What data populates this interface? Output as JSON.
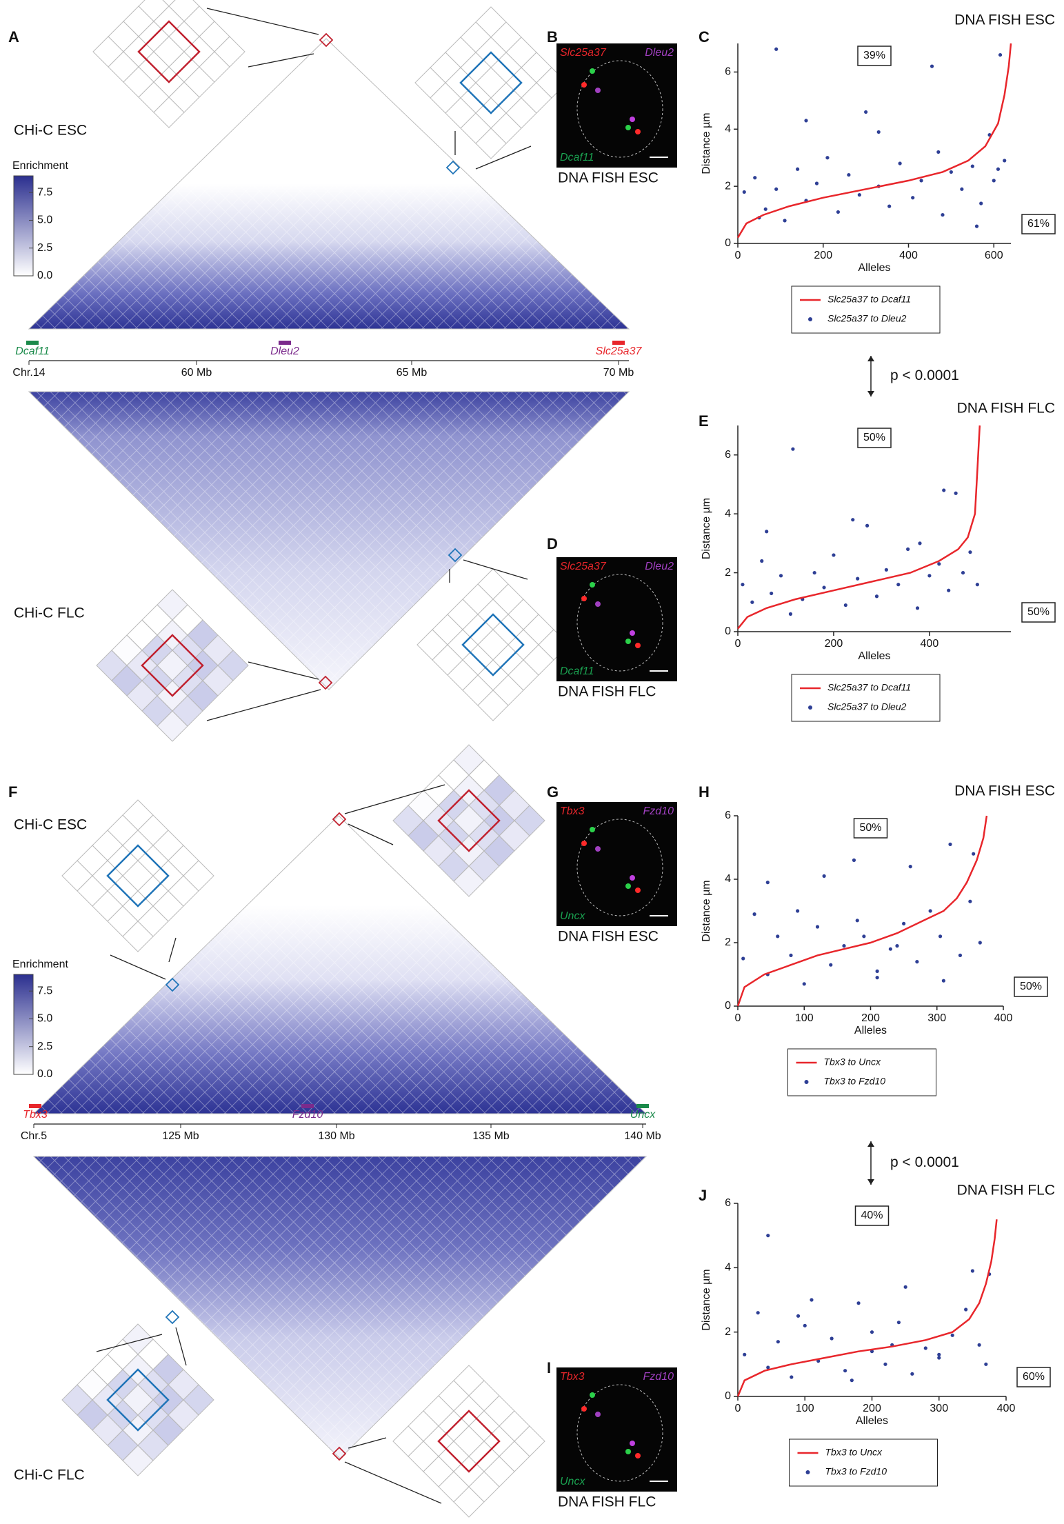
{
  "figure": {
    "letters": [
      "A",
      "B",
      "C",
      "D",
      "E",
      "F",
      "G",
      "H",
      "I",
      "J"
    ],
    "top": {
      "esc_label": "CHi-C ESC",
      "flc_label": "CHi-C FLC",
      "colorbar": {
        "title": "Enrichment",
        "lim": [
          0,
          9
        ],
        "colors": [
          "#ffffff",
          "#2b2f8f"
        ],
        "ticks": [
          {
            "value": 0,
            "label": "0.0"
          },
          {
            "value": 2.5,
            "label": "2.5"
          },
          {
            "value": 5,
            "label": "5.0"
          },
          {
            "value": 7.5,
            "label": "7.5"
          }
        ]
      },
      "genes": [
        {
          "name": "Dcaf11",
          "color": "#1a8a4a"
        },
        {
          "name": "Dleu2",
          "color": "#7b2a8c"
        },
        {
          "name": "Slc25a37",
          "color": "#e8262b"
        }
      ],
      "axis_labels": [
        "Chr.14",
        "60 Mb",
        "65 Mb",
        "70 Mb"
      ],
      "fish_esc": {
        "caption": "DNA FISH ESC",
        "labels": [
          {
            "text": "Slc25a37",
            "color": "#e8262b"
          },
          {
            "text": "Dleu2",
            "color": "#a040c0"
          },
          {
            "text": "Dcaf11",
            "color": "#1aa050"
          }
        ]
      },
      "fish_flc": {
        "caption": "DNA FISH FLC",
        "labels": [
          {
            "text": "Slc25a37",
            "color": "#e8262b"
          },
          {
            "text": "Dleu2",
            "color": "#a040c0"
          },
          {
            "text": "Dcaf11",
            "color": "#1aa050"
          }
        ]
      },
      "pvalue": "p < 0.0001"
    },
    "bottom": {
      "esc_label": "CHi-C ESC",
      "flc_label": "CHi-C FLC",
      "colorbar": {
        "title": "Enrichment",
        "lim": [
          0,
          9
        ],
        "colors": [
          "#ffffff",
          "#2b2f8f"
        ],
        "ticks": [
          {
            "value": 0,
            "label": "0.0"
          },
          {
            "value": 2.5,
            "label": "2.5"
          },
          {
            "value": 5,
            "label": "5.0"
          },
          {
            "value": 7.5,
            "label": "7.5"
          }
        ]
      },
      "genes": [
        {
          "name": "Tbx3",
          "color": "#e8262b"
        },
        {
          "name": "Fzd10",
          "color": "#7b2a8c"
        },
        {
          "name": "Uncx",
          "color": "#1a8a4a"
        }
      ],
      "axis_labels": [
        "Chr.5",
        "125 Mb",
        "130 Mb",
        "135 Mb",
        "140 Mb"
      ],
      "fish_esc": {
        "caption": "DNA FISH ESC",
        "labels": [
          {
            "text": "Tbx3",
            "color": "#e8262b"
          },
          {
            "text": "Fzd10",
            "color": "#a040c0"
          },
          {
            "text": "Uncx",
            "color": "#1aa050"
          }
        ]
      },
      "fish_flc": {
        "caption": "DNA FISH FLC",
        "labels": [
          {
            "text": "Tbx3",
            "color": "#e8262b"
          },
          {
            "text": "Fzd10",
            "color": "#a040c0"
          },
          {
            "text": "Uncx",
            "color": "#1aa050"
          }
        ]
      },
      "pvalue": "p < 0.0001"
    }
  },
  "chart_data": [
    {
      "type": "scatter",
      "title": "DNA FISH ESC",
      "xlabel": "Alleles",
      "ylabel": "Distance µm",
      "xlim": [
        0,
        640
      ],
      "ylim": [
        0,
        7
      ],
      "xticks": [
        0,
        200,
        400,
        600
      ],
      "yticks": [
        0,
        2,
        4,
        6
      ],
      "annotations": [
        "39%",
        "61%"
      ],
      "series": [
        {
          "name": "Slc25a37 to Dcaf11",
          "color": "#e8262b",
          "mode": "line",
          "x": [
            0,
            20,
            60,
            120,
            200,
            300,
            400,
            480,
            540,
            580,
            610,
            625,
            635,
            640
          ],
          "values": [
            0.2,
            0.7,
            1.0,
            1.3,
            1.6,
            1.9,
            2.2,
            2.5,
            2.9,
            3.4,
            4.2,
            5.2,
            6.2,
            7.0
          ]
        },
        {
          "name": "Slc25a37 to Dleu2",
          "color": "#2e3f95",
          "mode": "markers",
          "x": [
            15,
            40,
            65,
            90,
            110,
            140,
            160,
            185,
            210,
            235,
            260,
            285,
            300,
            330,
            355,
            380,
            410,
            430,
            455,
            480,
            500,
            525,
            550,
            570,
            590,
            600,
            615,
            625,
            90,
            330,
            160,
            470,
            560,
            610,
            50
          ],
          "values": [
            1.8,
            2.3,
            1.2,
            1.9,
            0.8,
            2.6,
            1.5,
            2.1,
            3.0,
            1.1,
            2.4,
            1.7,
            4.6,
            2.0,
            1.3,
            2.8,
            1.6,
            2.2,
            6.2,
            1.0,
            2.5,
            1.9,
            2.7,
            1.4,
            3.8,
            2.2,
            6.6,
            2.9,
            6.8,
            3.9,
            4.3,
            3.2,
            0.6,
            2.6,
            0.9
          ]
        }
      ]
    },
    {
      "type": "scatter",
      "title": "DNA FISH FLC",
      "xlabel": "Alleles",
      "ylabel": "Distance µm",
      "xlim": [
        0,
        570
      ],
      "ylim": [
        0,
        7
      ],
      "xticks": [
        0,
        200,
        400
      ],
      "yticks": [
        0,
        2,
        4,
        6
      ],
      "annotations": [
        "50%",
        "50%"
      ],
      "series": [
        {
          "name": "Slc25a37 to Dcaf11",
          "color": "#e8262b",
          "mode": "line",
          "x": [
            0,
            20,
            60,
            120,
            200,
            280,
            360,
            420,
            460,
            480,
            495,
            500,
            505
          ],
          "values": [
            0.1,
            0.5,
            0.8,
            1.1,
            1.4,
            1.7,
            2.0,
            2.4,
            2.8,
            3.2,
            4.0,
            5.5,
            7.0
          ]
        },
        {
          "name": "Slc25a37 to Dleu2",
          "color": "#2e3f95",
          "mode": "markers",
          "x": [
            10,
            30,
            50,
            70,
            90,
            115,
            135,
            160,
            180,
            200,
            225,
            250,
            270,
            290,
            310,
            335,
            355,
            375,
            400,
            420,
            440,
            455,
            470,
            485,
            500,
            60,
            240,
            380,
            430,
            110
          ],
          "values": [
            1.6,
            1.0,
            2.4,
            1.3,
            1.9,
            6.2,
            1.1,
            2.0,
            1.5,
            2.6,
            0.9,
            1.8,
            3.6,
            1.2,
            2.1,
            1.6,
            2.8,
            0.8,
            1.9,
            2.3,
            1.4,
            4.7,
            2.0,
            2.7,
            1.6,
            3.4,
            3.8,
            3.0,
            4.8,
            0.6
          ]
        }
      ]
    },
    {
      "type": "scatter",
      "title": "DNA FISH ESC",
      "xlabel": "Alleles",
      "ylabel": "Distance µm",
      "xlim": [
        0,
        400
      ],
      "ylim": [
        0,
        6
      ],
      "xticks": [
        0,
        100,
        200,
        300,
        400
      ],
      "yticks": [
        0,
        2,
        4,
        6
      ],
      "annotations": [
        "50%",
        "50%"
      ],
      "series": [
        {
          "name": "Tbx3 to Uncx",
          "color": "#e8262b",
          "mode": "line",
          "x": [
            0,
            10,
            40,
            80,
            120,
            160,
            200,
            240,
            280,
            310,
            330,
            345,
            360,
            370,
            375
          ],
          "values": [
            0,
            0.6,
            1.0,
            1.3,
            1.6,
            1.8,
            2.0,
            2.3,
            2.7,
            3.0,
            3.4,
            3.9,
            4.6,
            5.3,
            6.0
          ]
        },
        {
          "name": "Tbx3 to Fzd10",
          "color": "#2e3f95",
          "mode": "markers",
          "x": [
            8,
            25,
            45,
            60,
            80,
            100,
            120,
            140,
            160,
            175,
            190,
            210,
            230,
            250,
            270,
            290,
            305,
            320,
            335,
            350,
            365,
            45,
            130,
            210,
            260,
            355,
            310,
            90,
            180,
            240
          ],
          "values": [
            1.5,
            2.9,
            1.0,
            2.2,
            1.6,
            0.7,
            2.5,
            1.3,
            1.9,
            4.6,
            2.2,
            1.1,
            1.8,
            2.6,
            1.4,
            3.0,
            2.2,
            5.1,
            1.6,
            3.3,
            2.0,
            3.9,
            4.1,
            0.9,
            4.4,
            4.8,
            0.8,
            3.0,
            2.7,
            1.9
          ]
        }
      ]
    },
    {
      "type": "scatter",
      "title": "DNA FISH FLC",
      "xlabel": "Alleles",
      "ylabel": "Distance µm",
      "xlim": [
        0,
        400
      ],
      "ylim": [
        0,
        6
      ],
      "xticks": [
        0,
        100,
        200,
        300,
        400
      ],
      "yticks": [
        0,
        2,
        4,
        6
      ],
      "annotations": [
        "40%",
        "60%"
      ],
      "series": [
        {
          "name": "Tbx3 to Uncx",
          "color": "#e8262b",
          "mode": "line",
          "x": [
            0,
            10,
            40,
            80,
            130,
            180,
            230,
            280,
            320,
            345,
            360,
            370,
            378,
            383,
            386
          ],
          "values": [
            0,
            0.5,
            0.8,
            1.0,
            1.2,
            1.4,
            1.55,
            1.75,
            2.0,
            2.4,
            2.9,
            3.5,
            4.2,
            4.9,
            5.5
          ]
        },
        {
          "name": "Tbx3 to Fzd10",
          "color": "#2e3f95",
          "mode": "markers",
          "x": [
            10,
            30,
            45,
            60,
            80,
            100,
            120,
            140,
            160,
            180,
            200,
            220,
            240,
            260,
            280,
            300,
            320,
            340,
            360,
            375,
            45,
            110,
            250,
            350,
            370,
            200,
            90,
            300,
            170,
            230
          ],
          "values": [
            1.3,
            2.6,
            0.9,
            1.7,
            0.6,
            2.2,
            1.1,
            1.8,
            0.8,
            2.9,
            1.4,
            1.0,
            2.3,
            0.7,
            1.5,
            1.2,
            1.9,
            2.7,
            1.6,
            3.8,
            5.0,
            3.0,
            3.4,
            3.9,
            1.0,
            2.0,
            2.5,
            1.3,
            0.5,
            1.6
          ]
        }
      ]
    }
  ]
}
